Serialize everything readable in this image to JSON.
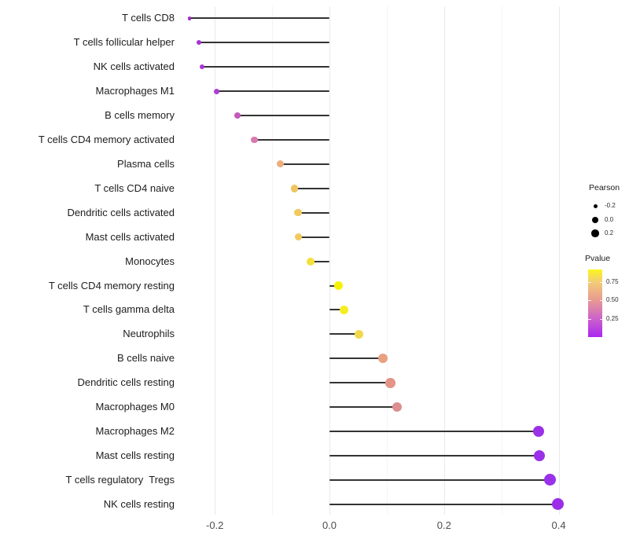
{
  "chart_data": {
    "type": "lollipop",
    "title": "",
    "xlabel": "",
    "ylabel": "",
    "xlim": [
      -0.262,
      0.428
    ],
    "x_ticks": [
      -0.2,
      0.0,
      0.2,
      0.4
    ],
    "x_tick_labels": [
      "-0.2",
      "0.0",
      "0.2",
      "0.4"
    ],
    "grid": "vertical only, minor every 0.1, major every 0.2, baseline at 0",
    "legend_position": "right",
    "rows": [
      {
        "label": "T cells CD8",
        "pearson": -0.244,
        "dot_color": "#a32ccd",
        "dot_d": 4.5
      },
      {
        "label": "T cells follicular helper",
        "pearson": -0.228,
        "dot_color": "#a833d2",
        "dot_d": 6
      },
      {
        "label": "NK cells activated",
        "pearson": -0.222,
        "dot_color": "#aa36d3",
        "dot_d": 6.5
      },
      {
        "label": "Macrophages M1",
        "pearson": -0.197,
        "dot_color": "#af3dd3",
        "dot_d": 7
      },
      {
        "label": "B cells memory",
        "pearson": -0.161,
        "dot_color": "#c459bd",
        "dot_d": 8
      },
      {
        "label": "T cells CD4 memory activated",
        "pearson": -0.131,
        "dot_color": "#d978af",
        "dot_d": 8.5
      },
      {
        "label": "Plasma cells",
        "pearson": -0.086,
        "dot_color": "#edae7c",
        "dot_d": 9
      },
      {
        "label": "T cells CD4 naive",
        "pearson": -0.061,
        "dot_color": "#f0c45f",
        "dot_d": 9.5
      },
      {
        "label": "Dendritic cells activated",
        "pearson": -0.055,
        "dot_color": "#f2c95e",
        "dot_d": 9.5
      },
      {
        "label": "Mast cells activated",
        "pearson": -0.054,
        "dot_color": "#f2c95e",
        "dot_d": 9.5
      },
      {
        "label": "Monocytes",
        "pearson": -0.033,
        "dot_color": "#f4e039",
        "dot_d": 10
      },
      {
        "label": "T cells CD4 memory resting",
        "pearson": 0.016,
        "dot_color": "#f6f200",
        "dot_d": 11
      },
      {
        "label": "T cells gamma delta",
        "pearson": 0.025,
        "dot_color": "#f5ed21",
        "dot_d": 11
      },
      {
        "label": "Neutrophils",
        "pearson": 0.051,
        "dot_color": "#f0d84a",
        "dot_d": 11
      },
      {
        "label": "B cells naive",
        "pearson": 0.093,
        "dot_color": "#e8a081",
        "dot_d": 12
      },
      {
        "label": "Dendritic cells resting",
        "pearson": 0.106,
        "dot_color": "#e39487",
        "dot_d": 12.5
      },
      {
        "label": "Macrophages M0",
        "pearson": 0.118,
        "dot_color": "#de8e8e",
        "dot_d": 12.5
      },
      {
        "label": "Macrophages M2",
        "pearson": 0.365,
        "dot_color": "#9b30e8",
        "dot_d": 14.5
      },
      {
        "label": "Mast cells resting",
        "pearson": 0.366,
        "dot_color": "#9b30e8",
        "dot_d": 14.5
      },
      {
        "label": "T cells regulatory  Tregs",
        "pearson": 0.385,
        "dot_color": "#9932ea",
        "dot_d": 15
      },
      {
        "label": "NK cells resting",
        "pearson": 0.399,
        "dot_color": "#9d2ce8",
        "dot_d": 15
      }
    ],
    "legend": {
      "size": {
        "title": "Pearson",
        "dot_color": "#000000",
        "entries": [
          {
            "label": "-0.2",
            "value": -0.2,
            "dot_d": 5
          },
          {
            "label": "0.0",
            "value": 0.0,
            "dot_d": 8
          },
          {
            "label": "0.2",
            "value": 0.2,
            "dot_d": 9.5
          }
        ]
      },
      "color": {
        "title": "Pvalue",
        "bar_range": [
          0,
          0.92
        ],
        "ticks": [
          {
            "label": "0.75",
            "value": 0.75
          },
          {
            "label": "0.50",
            "value": 0.5
          },
          {
            "label": "0.25",
            "value": 0.25
          }
        ],
        "gradient_top_to_bottom": [
          {
            "pos": 0,
            "color": "#fcf51c"
          },
          {
            "pos": 18,
            "color": "#f3cd76"
          },
          {
            "pos": 45,
            "color": "#e89a92"
          },
          {
            "pos": 72,
            "color": "#cd64c9"
          },
          {
            "pos": 100,
            "color": "#ab26f0"
          }
        ]
      }
    }
  }
}
